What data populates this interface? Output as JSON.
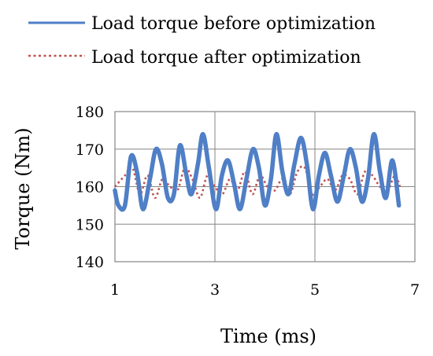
{
  "chart_data": {
    "type": "line",
    "title": "",
    "xlabel": "Time (ms)",
    "ylabel": "Torque (Nm)",
    "xlim": [
      1,
      7
    ],
    "ylim": [
      140,
      180
    ],
    "x_ticks": [
      1,
      3,
      5,
      7
    ],
    "y_ticks": [
      140,
      150,
      160,
      170,
      180
    ],
    "grid": true,
    "legend_position": "top",
    "series": [
      {
        "name": "Load torque before optimization",
        "color": "#4f7fc6",
        "style": "solid",
        "x": [
          1.0,
          1.07,
          1.2,
          1.32,
          1.44,
          1.56,
          1.7,
          1.82,
          1.94,
          2.06,
          2.18,
          2.3,
          2.43,
          2.53,
          2.66,
          2.76,
          2.88,
          3.02,
          3.14,
          3.26,
          3.38,
          3.5,
          3.63,
          3.76,
          3.88,
          4.0,
          4.12,
          4.23,
          4.35,
          4.47,
          4.59,
          4.72,
          4.84,
          4.96,
          5.08,
          5.2,
          5.32,
          5.45,
          5.58,
          5.7,
          5.82,
          5.94,
          6.06,
          6.18,
          6.3,
          6.42,
          6.55,
          6.68
        ],
        "y": [
          159,
          155,
          155,
          168,
          164,
          154,
          162,
          170,
          166,
          157,
          158,
          171,
          163,
          158,
          166,
          174,
          165,
          154,
          163,
          167,
          161,
          154,
          162,
          170,
          165,
          155,
          162,
          174,
          164,
          158,
          166,
          173,
          166,
          154,
          163,
          169,
          163,
          156,
          163,
          170,
          165,
          156,
          162,
          174,
          164,
          157,
          167,
          155
        ]
      },
      {
        "name": "Load torque after optimization",
        "color": "#c0504d",
        "style": "dotted",
        "x": [
          1.0,
          1.2,
          1.35,
          1.5,
          1.65,
          1.8,
          1.95,
          2.1,
          2.25,
          2.4,
          2.55,
          2.7,
          2.85,
          3.0,
          3.15,
          3.3,
          3.45,
          3.6,
          3.75,
          3.9,
          4.05,
          4.2,
          4.35,
          4.5,
          4.65,
          4.8,
          4.95,
          5.1,
          5.25,
          5.4,
          5.55,
          5.7,
          5.85,
          6.0,
          6.15,
          6.3,
          6.45,
          6.6,
          6.7
        ],
        "y": [
          160,
          163,
          165,
          158,
          163,
          157,
          162,
          160,
          159,
          165,
          162,
          157,
          163,
          160,
          158,
          162,
          159,
          164,
          158,
          163,
          160,
          159,
          162,
          158,
          164,
          165,
          158,
          160,
          162,
          159,
          163,
          162,
          158,
          164,
          163,
          160,
          159,
          163,
          160
        ]
      }
    ]
  }
}
